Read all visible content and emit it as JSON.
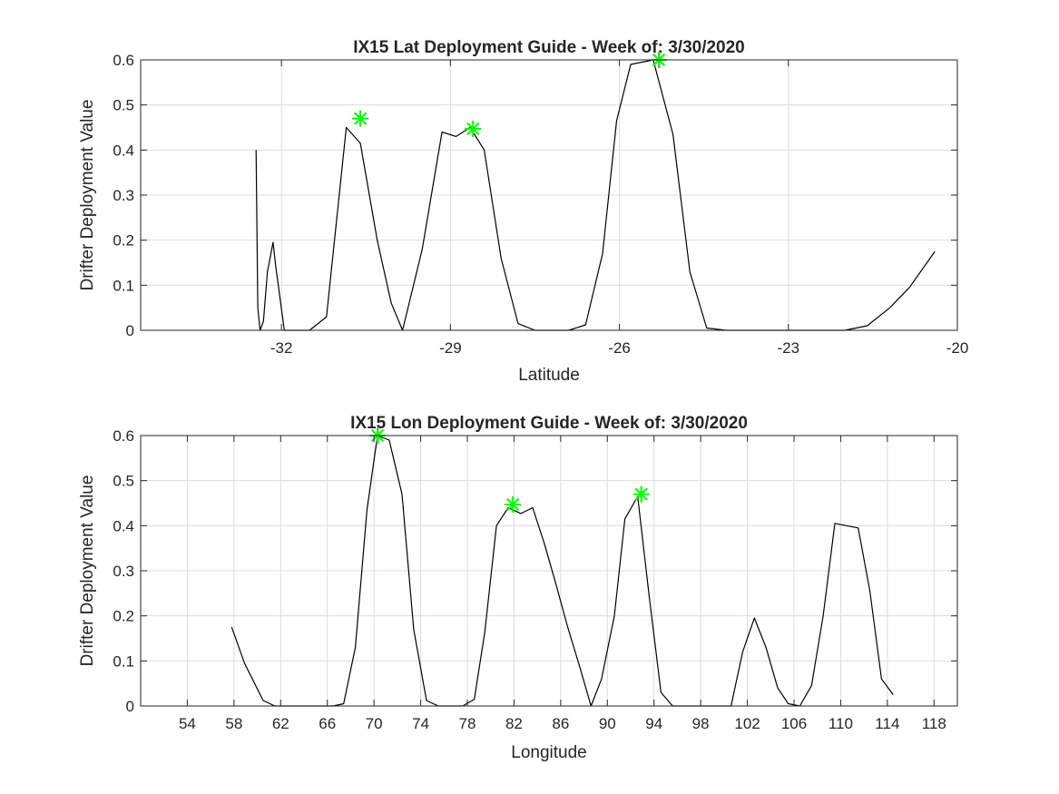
{
  "colors": {
    "line": "#000000",
    "marker": "#00ff00",
    "grid": "#dcdcdc",
    "axes": "#262626",
    "background": "#ffffff"
  },
  "chart_data": [
    {
      "type": "line",
      "title": "IX15 Lat Deployment Guide - Week of: 3/30/2020",
      "xlabel": "Latitude",
      "ylabel": "Drifter Deployment Value",
      "xlim": [
        -34.5,
        -20
      ],
      "ylim": [
        0,
        0.6
      ],
      "xticks": [
        -32,
        -29,
        -26,
        -23,
        -20
      ],
      "xtick_labels": [
        "-32",
        "-29",
        "-26",
        "-23",
        "-20"
      ],
      "yticks": [
        0,
        0.1,
        0.2,
        0.3,
        0.4,
        0.5,
        0.6
      ],
      "ytick_labels": [
        "0",
        "0.1",
        "0.2",
        "0.3",
        "0.4",
        "0.5",
        "0.6"
      ],
      "grid": true,
      "series": [
        {
          "x": [
            -32.45,
            -32.42,
            -32.38,
            -32.32,
            -32.25,
            -32.15,
            -32.1,
            -31.95,
            -31.9,
            -31.5,
            -31.2,
            -30.85,
            -30.6,
            -30.3,
            -30.05,
            -29.85,
            -29.5,
            -29.15,
            -28.9,
            -28.65,
            -28.4,
            -28.1,
            -27.8,
            -27.5,
            -27.2,
            -26.9,
            -26.6,
            -26.3,
            -26.05,
            -25.8,
            -25.4,
            -25.05,
            -24.75,
            -24.45,
            -24.1,
            -23.5,
            -23.0,
            -22.5,
            -22.0,
            -21.6,
            -21.2,
            -20.85,
            -20.4
          ],
          "y": [
            0.4,
            0.05,
            0.0,
            0.02,
            0.13,
            0.195,
            0.14,
            0.0,
            0.0,
            0.0,
            0.03,
            0.45,
            0.415,
            0.2,
            0.06,
            0.0,
            0.18,
            0.44,
            0.43,
            0.45,
            0.4,
            0.16,
            0.015,
            0.0,
            0.0,
            0.0,
            0.012,
            0.17,
            0.465,
            0.59,
            0.6,
            0.435,
            0.13,
            0.005,
            0.0,
            0.0,
            0.0,
            0.0,
            0.0,
            0.01,
            0.05,
            0.095,
            0.175
          ]
        }
      ],
      "markers": [
        {
          "x": -30.6,
          "y": 0.47
        },
        {
          "x": -28.6,
          "y": 0.447
        },
        {
          "x": -25.3,
          "y": 0.6
        }
      ]
    },
    {
      "type": "line",
      "title": "IX15 Lon Deployment Guide - Week of: 3/30/2020",
      "xlabel": "Longitude",
      "ylabel": "Drifter Deployment Value",
      "xlim": [
        50,
        120
      ],
      "ylim": [
        0,
        0.6
      ],
      "xticks": [
        54,
        58,
        62,
        66,
        70,
        74,
        78,
        82,
        86,
        90,
        94,
        98,
        102,
        106,
        110,
        114,
        118
      ],
      "xtick_labels": [
        "54",
        "58",
        "62",
        "66",
        "70",
        "74",
        "78",
        "82",
        "86",
        "90",
        "94",
        "98",
        "102",
        "106",
        "110",
        "114",
        "118"
      ],
      "yticks": [
        0,
        0.1,
        0.2,
        0.3,
        0.4,
        0.5,
        0.6
      ],
      "ytick_labels": [
        "0",
        "0.1",
        "0.2",
        "0.3",
        "0.4",
        "0.5",
        "0.6"
      ],
      "grid": true,
      "series": [
        {
          "x": [
            57.8,
            58.9,
            60.5,
            61.5,
            63,
            64.5,
            66.5,
            67.4,
            68.4,
            69.4,
            70.3,
            71.3,
            72.4,
            73.4,
            74.5,
            75.5,
            76.5,
            77.6,
            78.6,
            79.5,
            80.5,
            81.5,
            82.6,
            83.6,
            84.6,
            85.6,
            86.6,
            87.6,
            88.6,
            89.5,
            90.6,
            91.5,
            92.6,
            93.6,
            94.6,
            95.6,
            96.5,
            97.5,
            98.5,
            99.6,
            100.6,
            101.6,
            102.6,
            103.6,
            104.6,
            105.5,
            106.5,
            107.5,
            108.5,
            109.5,
            110.5,
            111.5,
            112.5,
            113.5,
            114.5
          ],
          "y": [
            0.175,
            0.095,
            0.012,
            0.0,
            0.0,
            0.0,
            0.0,
            0.005,
            0.13,
            0.435,
            0.6,
            0.59,
            0.47,
            0.17,
            0.012,
            0.0,
            0.0,
            0.0,
            0.015,
            0.165,
            0.4,
            0.44,
            0.427,
            0.44,
            0.36,
            0.27,
            0.175,
            0.09,
            0.0,
            0.06,
            0.2,
            0.415,
            0.465,
            0.24,
            0.03,
            0.0,
            0.0,
            0.0,
            0.0,
            0.0,
            0.0,
            0.12,
            0.195,
            0.13,
            0.04,
            0.005,
            0.0,
            0.045,
            0.2,
            0.405,
            0.4,
            0.395,
            0.255,
            0.06,
            0.025
          ]
        }
      ],
      "markers": [
        {
          "x": 70.3,
          "y": 0.6
        },
        {
          "x": 81.9,
          "y": 0.447
        },
        {
          "x": 92.9,
          "y": 0.47
        }
      ]
    }
  ]
}
